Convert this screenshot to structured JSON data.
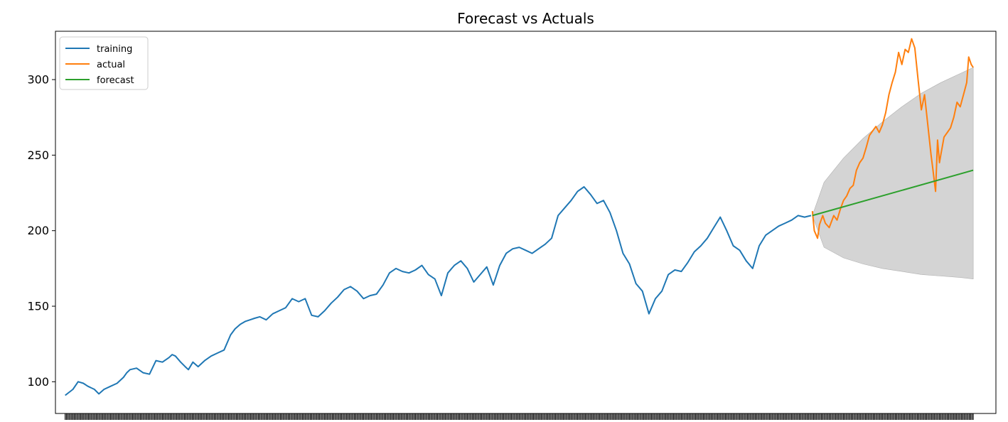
{
  "chart_data": {
    "type": "line",
    "title": "Forecast vs Actuals",
    "xlabel": "",
    "ylabel": "",
    "ylim": [
      79,
      332
    ],
    "xlim": [
      -15,
      1435
    ],
    "x_ticks_dense": true,
    "y_ticks": [
      100,
      150,
      200,
      250,
      300
    ],
    "legend": {
      "placement": "top-left",
      "entries": [
        "training",
        "actual",
        "forecast"
      ]
    },
    "series": [
      {
        "name": "training",
        "color": "#1f77b4",
        "x": [
          0,
          12,
          20,
          28,
          35,
          45,
          52,
          60,
          70,
          80,
          90,
          95,
          100,
          110,
          120,
          130,
          140,
          150,
          160,
          165,
          170,
          178,
          185,
          190,
          197,
          205,
          215,
          225,
          235,
          245,
          255,
          262,
          270,
          278,
          285,
          292,
          300,
          310,
          320,
          330,
          340,
          350,
          360,
          370,
          380,
          390,
          400,
          410,
          420,
          430,
          440,
          450,
          460,
          470,
          480,
          490,
          500,
          510,
          520,
          530,
          540,
          550,
          560,
          570,
          580,
          590,
          600,
          610,
          620,
          630,
          640,
          650,
          660,
          670,
          680,
          690,
          700,
          710,
          720,
          730,
          740,
          750,
          760,
          770,
          780,
          790,
          800,
          810,
          820,
          830,
          840,
          850,
          860,
          870,
          880,
          890,
          900,
          910,
          920,
          930,
          940,
          950,
          960,
          970,
          980,
          990,
          1000,
          1010,
          1020,
          1030,
          1040,
          1050,
          1060,
          1070,
          1080,
          1090,
          1100,
          1110,
          1120,
          1130,
          1140,
          1150
        ],
        "values": [
          91,
          95,
          100,
          99,
          97,
          95,
          92,
          95,
          97,
          99,
          103,
          106,
          108,
          109,
          106,
          105,
          114,
          113,
          116,
          118,
          117,
          113,
          110,
          108,
          113,
          110,
          114,
          117,
          119,
          121,
          131,
          135,
          138,
          140,
          141,
          142,
          143,
          141,
          145,
          147,
          149,
          155,
          153,
          155,
          144,
          143,
          147,
          152,
          156,
          161,
          163,
          160,
          155,
          157,
          158,
          164,
          172,
          175,
          173,
          172,
          174,
          177,
          171,
          168,
          157,
          172,
          177,
          180,
          175,
          166,
          171,
          176,
          164,
          177,
          185,
          188,
          189,
          187,
          185,
          188,
          191,
          195,
          210,
          215,
          220,
          226,
          229,
          224,
          218,
          220,
          212,
          200,
          185,
          178,
          165,
          160,
          145,
          155,
          160,
          171,
          174,
          173,
          179,
          186,
          190,
          195,
          202,
          209,
          200,
          190,
          187,
          180,
          175,
          190,
          197,
          200,
          203,
          205,
          207,
          210,
          209,
          210
        ]
      },
      {
        "name": "actual",
        "color": "#ff7f0e",
        "x": [
          1152,
          1155,
          1160,
          1163,
          1168,
          1172,
          1178,
          1185,
          1190,
          1195,
          1200,
          1205,
          1210,
          1215,
          1220,
          1225,
          1230,
          1235,
          1240,
          1245,
          1250,
          1255,
          1260,
          1265,
          1270,
          1275,
          1280,
          1285,
          1290,
          1295,
          1300,
          1305,
          1310,
          1315,
          1320,
          1325,
          1330,
          1335,
          1338,
          1342,
          1345,
          1348,
          1350,
          1355,
          1360,
          1365,
          1370,
          1375,
          1380,
          1385,
          1390,
          1393,
          1397,
          1400
        ],
        "values": [
          213,
          200,
          195,
          204,
          210,
          205,
          202,
          210,
          207,
          214,
          220,
          223,
          228,
          230,
          240,
          245,
          248,
          255,
          263,
          266,
          269,
          265,
          270,
          278,
          290,
          298,
          305,
          318,
          310,
          320,
          318,
          327,
          321,
          300,
          280,
          290,
          270,
          250,
          240,
          226,
          260,
          245,
          250,
          262,
          265,
          268,
          275,
          285,
          282,
          290,
          298,
          315,
          310,
          308
        ]
      },
      {
        "name": "forecast",
        "color": "#2ca02c",
        "x": [
          1152,
          1400
        ],
        "values": [
          210,
          240
        ]
      }
    ],
    "confidence_band": {
      "color": "#d4d4d4",
      "x": [
        1152,
        1170,
        1200,
        1230,
        1260,
        1290,
        1320,
        1350,
        1380,
        1400
      ],
      "upper": [
        210,
        232,
        248,
        261,
        272,
        282,
        291,
        298,
        304,
        308
      ],
      "lower": [
        210,
        189,
        182,
        178,
        175,
        173,
        171,
        170,
        169,
        168
      ]
    }
  }
}
